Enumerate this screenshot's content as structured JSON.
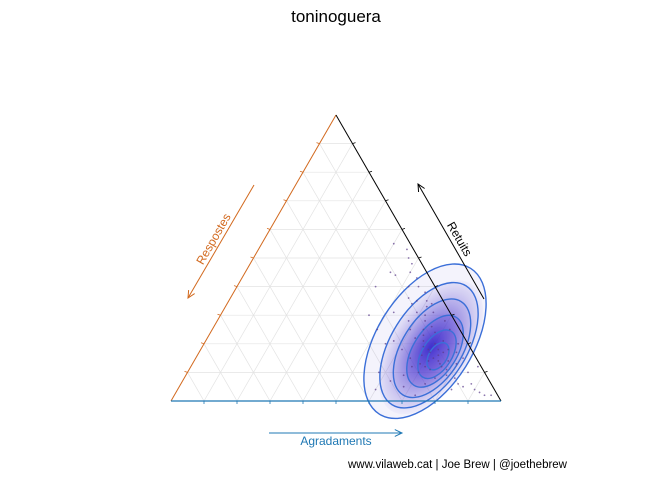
{
  "chart_data": {
    "type": "scatter",
    "subtype": "ternary-density",
    "title": "toninoguera",
    "caption": "www.vilaweb.cat | Joe Brew | @joethebrew",
    "axes": {
      "left": {
        "label": "Respostes",
        "color": "#d2691e"
      },
      "right": {
        "label": "Retuits",
        "color": "#000000"
      },
      "bottom": {
        "label": "Agradaments",
        "color": "#1f78b4"
      }
    },
    "grid": true,
    "colors": {
      "contour": "#3b6fd8",
      "fill": "#5a3fd0",
      "points": "#5a3a8a"
    },
    "density_peak": {
      "Agradaments": 0.72,
      "Retuits": 0.16,
      "Respostes": 0.12
    },
    "points": [
      [
        0.72,
        0.15,
        0.13
      ],
      [
        0.74,
        0.14,
        0.12
      ],
      [
        0.7,
        0.17,
        0.13
      ],
      [
        0.73,
        0.16,
        0.11
      ],
      [
        0.71,
        0.14,
        0.15
      ],
      [
        0.75,
        0.13,
        0.12
      ],
      [
        0.69,
        0.18,
        0.13
      ],
      [
        0.72,
        0.18,
        0.1
      ],
      [
        0.76,
        0.12,
        0.12
      ],
      [
        0.68,
        0.16,
        0.16
      ],
      [
        0.7,
        0.2,
        0.1
      ],
      [
        0.74,
        0.17,
        0.09
      ],
      [
        0.67,
        0.19,
        0.14
      ],
      [
        0.77,
        0.14,
        0.09
      ],
      [
        0.66,
        0.21,
        0.13
      ],
      [
        0.71,
        0.12,
        0.17
      ],
      [
        0.73,
        0.11,
        0.16
      ],
      [
        0.65,
        0.23,
        0.12
      ],
      [
        0.78,
        0.11,
        0.11
      ],
      [
        0.69,
        0.13,
        0.18
      ],
      [
        0.64,
        0.25,
        0.11
      ],
      [
        0.75,
        0.18,
        0.07
      ],
      [
        0.63,
        0.28,
        0.09
      ],
      [
        0.66,
        0.26,
        0.08
      ],
      [
        0.79,
        0.09,
        0.12
      ],
      [
        0.62,
        0.3,
        0.08
      ],
      [
        0.68,
        0.24,
        0.08
      ],
      [
        0.8,
        0.13,
        0.07
      ],
      [
        0.61,
        0.33,
        0.06
      ],
      [
        0.72,
        0.21,
        0.07
      ],
      [
        0.6,
        0.35,
        0.05
      ],
      [
        0.64,
        0.31,
        0.05
      ],
      [
        0.82,
        0.08,
        0.1
      ],
      [
        0.7,
        0.1,
        0.2
      ],
      [
        0.67,
        0.12,
        0.21
      ],
      [
        0.76,
        0.08,
        0.16
      ],
      [
        0.58,
        0.38,
        0.04
      ],
      [
        0.62,
        0.34,
        0.04
      ],
      [
        0.84,
        0.06,
        0.1
      ],
      [
        0.86,
        0.05,
        0.09
      ],
      [
        0.65,
        0.15,
        0.2
      ],
      [
        0.59,
        0.31,
        0.1
      ],
      [
        0.57,
        0.35,
        0.08
      ],
      [
        0.63,
        0.22,
        0.15
      ],
      [
        0.81,
        0.15,
        0.04
      ],
      [
        0.88,
        0.06,
        0.06
      ],
      [
        0.9,
        0.04,
        0.06
      ],
      [
        0.78,
        0.17,
        0.05
      ],
      [
        0.55,
        0.4,
        0.05
      ],
      [
        0.56,
        0.34,
        0.1
      ],
      [
        0.6,
        0.25,
        0.15
      ],
      [
        0.74,
        0.06,
        0.2
      ],
      [
        0.85,
        0.1,
        0.05
      ],
      [
        0.69,
        0.28,
        0.03
      ],
      [
        0.53,
        0.43,
        0.04
      ],
      [
        0.58,
        0.28,
        0.14
      ],
      [
        0.66,
        0.09,
        0.25
      ],
      [
        0.61,
        0.18,
        0.21
      ],
      [
        0.92,
        0.03,
        0.05
      ],
      [
        0.72,
        0.25,
        0.03
      ],
      [
        0.54,
        0.36,
        0.1
      ],
      [
        0.52,
        0.4,
        0.08
      ],
      [
        0.77,
        0.2,
        0.03
      ],
      [
        0.83,
        0.04,
        0.13
      ],
      [
        0.5,
        0.45,
        0.05
      ],
      [
        0.57,
        0.21,
        0.22
      ],
      [
        0.63,
        0.07,
        0.3
      ],
      [
        0.49,
        0.48,
        0.03
      ],
      [
        0.52,
        0.31,
        0.17
      ],
      [
        0.47,
        0.5,
        0.03
      ],
      [
        0.45,
        0.53,
        0.02
      ],
      [
        0.55,
        0.2,
        0.25
      ],
      [
        0.46,
        0.44,
        0.1
      ],
      [
        0.44,
        0.45,
        0.11
      ],
      [
        0.58,
        0.1,
        0.32
      ],
      [
        0.68,
        0.05,
        0.27
      ],
      [
        0.94,
        0.02,
        0.04
      ],
      [
        0.96,
        0.02,
        0.02
      ],
      [
        0.87,
        0.12,
        0.01
      ],
      [
        0.4,
        0.55,
        0.05
      ],
      [
        0.5,
        0.25,
        0.25
      ],
      [
        0.42,
        0.4,
        0.18
      ],
      [
        0.45,
        0.3,
        0.25
      ],
      [
        0.6,
        0.04,
        0.36
      ],
      [
        0.73,
        0.02,
        0.25
      ]
    ]
  }
}
